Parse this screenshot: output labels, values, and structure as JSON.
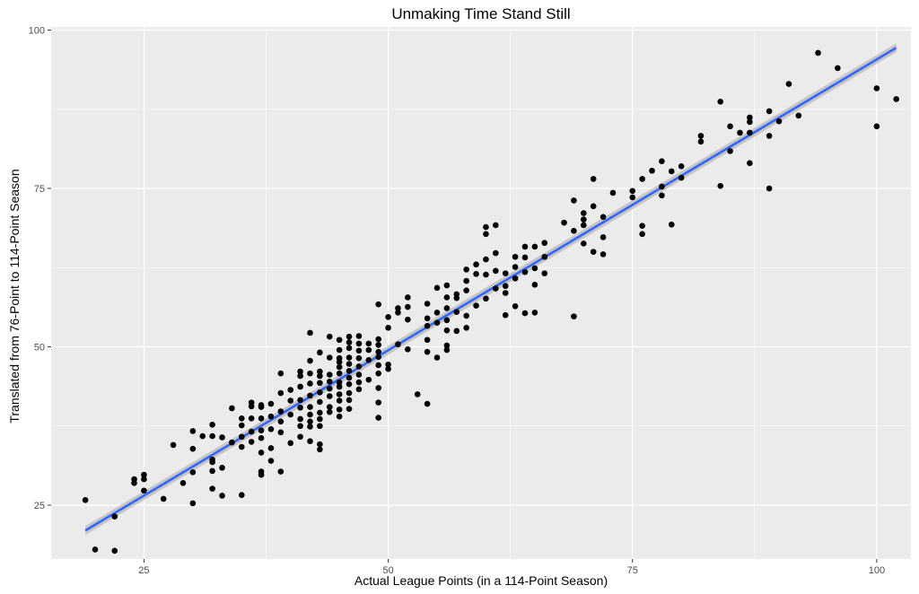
{
  "chart_data": {
    "type": "scatter",
    "title": "Unmaking Time Stand Still",
    "xlabel": "Actual League Points (in a 114-Point Season)",
    "ylabel": "Translated from 76-Point to 114-Point Season",
    "xlim": [
      15.5,
      103.5
    ],
    "ylim": [
      16.5,
      100.5
    ],
    "x_ticks": [
      25,
      50,
      75,
      100
    ],
    "y_ticks": [
      25,
      50,
      75,
      100
    ],
    "grid": true,
    "background": "#ebebeb",
    "grid_color": "#ffffff",
    "point_color": "#000000",
    "trend": {
      "method": "linear regression with confidence band",
      "x0": 19,
      "y0": 21.0,
      "x1": 102,
      "y1": 97.2,
      "band_half_width": 0.7,
      "line_color": "#3366ff",
      "band_color": "#bebebe"
    },
    "points": [
      [
        19,
        25.8
      ],
      [
        20,
        18
      ],
      [
        22,
        17.8
      ],
      [
        22,
        23.2
      ],
      [
        24,
        28.5
      ],
      [
        24,
        29.1
      ],
      [
        25,
        27.3
      ],
      [
        25,
        29.1
      ],
      [
        25,
        29.8
      ],
      [
        27,
        26
      ],
      [
        28,
        34.5
      ],
      [
        29,
        28.5
      ],
      [
        30,
        25.3
      ],
      [
        30,
        30.2
      ],
      [
        30,
        33.9
      ],
      [
        30,
        36.7
      ],
      [
        31,
        35.9
      ],
      [
        32,
        27.6
      ],
      [
        32,
        30.4
      ],
      [
        32,
        31.8
      ],
      [
        32,
        32.2
      ],
      [
        32,
        35.9
      ],
      [
        32,
        37.7
      ],
      [
        33,
        26.5
      ],
      [
        33,
        30.9
      ],
      [
        33,
        35.7
      ],
      [
        34,
        34.9
      ],
      [
        34,
        40.3
      ],
      [
        35,
        26.6
      ],
      [
        35,
        34.2
      ],
      [
        35,
        35.8
      ],
      [
        35,
        37.6
      ],
      [
        35,
        38.7
      ],
      [
        36,
        35
      ],
      [
        36,
        36.6
      ],
      [
        36,
        38.7
      ],
      [
        36,
        40.6
      ],
      [
        36,
        41.2
      ],
      [
        37,
        29.8
      ],
      [
        37,
        30.3
      ],
      [
        37,
        33.3
      ],
      [
        37,
        35.6
      ],
      [
        37,
        36.8
      ],
      [
        37,
        38.7
      ],
      [
        37,
        40.5
      ],
      [
        37,
        40.8
      ],
      [
        38,
        32
      ],
      [
        38,
        34
      ],
      [
        38,
        37
      ],
      [
        38,
        39
      ],
      [
        38,
        41
      ],
      [
        39,
        30.3
      ],
      [
        39,
        36.5
      ],
      [
        39,
        38.2
      ],
      [
        39,
        39.8
      ],
      [
        39,
        42.7
      ],
      [
        39,
        45.8
      ],
      [
        40,
        34.8
      ],
      [
        40,
        39.3
      ],
      [
        40,
        41.5
      ],
      [
        40,
        43.2
      ],
      [
        41,
        35.8
      ],
      [
        41,
        37.5
      ],
      [
        41,
        38.6
      ],
      [
        41,
        40.4
      ],
      [
        41,
        41.6
      ],
      [
        41,
        43.7
      ],
      [
        41,
        45.4
      ],
      [
        41,
        46.1
      ],
      [
        42,
        35.1
      ],
      [
        42,
        37.4
      ],
      [
        42,
        38.2
      ],
      [
        42,
        39.3
      ],
      [
        42,
        40.5
      ],
      [
        42,
        42.3
      ],
      [
        42,
        44.2
      ],
      [
        42,
        45.8
      ],
      [
        42,
        47.8
      ],
      [
        42,
        52.2
      ],
      [
        43,
        33.8
      ],
      [
        43,
        34.6
      ],
      [
        43,
        37.5
      ],
      [
        43,
        38.6
      ],
      [
        43,
        39.6
      ],
      [
        43,
        41.3
      ],
      [
        43,
        42.8
      ],
      [
        43,
        44.3
      ],
      [
        43,
        45.4
      ],
      [
        43,
        46.1
      ],
      [
        43,
        49.1
      ],
      [
        44,
        39.7
      ],
      [
        44,
        40.5
      ],
      [
        44,
        42.2
      ],
      [
        44,
        43.4
      ],
      [
        44,
        44.5
      ],
      [
        44,
        45.6
      ],
      [
        44,
        48.3
      ],
      [
        44,
        51.6
      ],
      [
        45,
        39
      ],
      [
        45,
        40.1
      ],
      [
        45,
        41.5
      ],
      [
        45,
        42.5
      ],
      [
        45,
        43.7
      ],
      [
        45,
        44.4
      ],
      [
        45,
        45.8
      ],
      [
        45,
        46.8
      ],
      [
        45,
        47.6
      ],
      [
        45,
        48.2
      ],
      [
        45,
        49.5
      ],
      [
        45,
        51.1
      ],
      [
        46,
        40.2
      ],
      [
        46,
        41.6
      ],
      [
        46,
        42.7
      ],
      [
        46,
        44.1
      ],
      [
        46,
        45.1
      ],
      [
        46,
        46.2
      ],
      [
        46,
        47.3
      ],
      [
        46,
        48.3
      ],
      [
        46,
        49.8
      ],
      [
        46,
        50.7
      ],
      [
        46,
        51.6
      ],
      [
        47,
        43.3
      ],
      [
        47,
        44.4
      ],
      [
        47,
        45.6
      ],
      [
        47,
        46.9
      ],
      [
        47,
        48.2
      ],
      [
        47,
        49.4
      ],
      [
        47,
        50.5
      ],
      [
        47,
        51.7
      ],
      [
        48,
        44.8
      ],
      [
        48,
        47.9
      ],
      [
        48,
        49.5
      ],
      [
        48,
        50.5
      ],
      [
        49,
        38.8
      ],
      [
        49,
        41.2
      ],
      [
        49,
        43.5
      ],
      [
        49,
        45.8
      ],
      [
        49,
        47.1
      ],
      [
        49,
        48.4
      ],
      [
        49,
        49.2
      ],
      [
        49,
        50.3
      ],
      [
        49,
        51.2
      ],
      [
        49,
        56.7
      ],
      [
        50,
        46.5
      ],
      [
        50,
        47.2
      ],
      [
        50,
        53
      ],
      [
        50,
        54.7
      ],
      [
        51,
        50.4
      ],
      [
        51,
        55.4
      ],
      [
        51,
        56.1
      ],
      [
        52,
        49.6
      ],
      [
        52,
        54.3
      ],
      [
        52,
        56.3
      ],
      [
        52,
        57.8
      ],
      [
        53,
        42.5
      ],
      [
        54,
        41
      ],
      [
        54,
        49.2
      ],
      [
        54,
        51.1
      ],
      [
        54,
        53.3
      ],
      [
        54,
        54.5
      ],
      [
        54,
        56.8
      ],
      [
        55,
        48.3
      ],
      [
        55,
        53.8
      ],
      [
        55,
        55.4
      ],
      [
        55,
        59.3
      ],
      [
        56,
        49.5
      ],
      [
        56,
        50.2
      ],
      [
        56,
        52.6
      ],
      [
        56,
        54.2
      ],
      [
        56,
        56.1
      ],
      [
        56,
        57.8
      ],
      [
        56,
        59.7
      ],
      [
        57,
        52.5
      ],
      [
        57,
        55.5
      ],
      [
        57,
        57.7
      ],
      [
        57,
        58.3
      ],
      [
        58,
        53
      ],
      [
        58,
        54.9
      ],
      [
        58,
        58.9
      ],
      [
        58,
        60.4
      ],
      [
        58,
        62.2
      ],
      [
        59,
        56.5
      ],
      [
        59,
        61.5
      ],
      [
        59,
        63
      ],
      [
        60,
        57.6
      ],
      [
        60,
        61.4
      ],
      [
        60,
        63.8
      ],
      [
        60,
        67.8
      ],
      [
        60,
        68.9
      ],
      [
        61,
        59.2
      ],
      [
        61,
        62
      ],
      [
        61,
        64.8
      ],
      [
        61,
        69.2
      ],
      [
        62,
        55
      ],
      [
        62,
        58.5
      ],
      [
        62,
        59.6
      ],
      [
        62,
        61.6
      ],
      [
        63,
        56.4
      ],
      [
        63,
        60.8
      ],
      [
        63,
        62.6
      ],
      [
        63,
        64.2
      ],
      [
        64,
        55.3
      ],
      [
        64,
        61.8
      ],
      [
        64,
        64.1
      ],
      [
        64,
        65.8
      ],
      [
        65,
        55.4
      ],
      [
        65,
        59.8
      ],
      [
        65,
        62.4
      ],
      [
        65,
        65.8
      ],
      [
        66,
        61.6
      ],
      [
        66,
        64.2
      ],
      [
        66,
        66.4
      ],
      [
        68,
        69.6
      ],
      [
        69,
        54.8
      ],
      [
        69,
        68.3
      ],
      [
        69,
        73.1
      ],
      [
        70,
        66.3
      ],
      [
        70,
        69.2
      ],
      [
        70,
        70.1
      ],
      [
        70,
        71.1
      ],
      [
        71,
        65
      ],
      [
        71,
        72.2
      ],
      [
        71,
        76.5
      ],
      [
        72,
        64.6
      ],
      [
        72,
        67.3
      ],
      [
        72,
        70.5
      ],
      [
        73,
        74.3
      ],
      [
        75,
        73.6
      ],
      [
        75,
        74.6
      ],
      [
        76,
        67.8
      ],
      [
        76,
        69.1
      ],
      [
        76,
        76.5
      ],
      [
        77,
        77.8
      ],
      [
        78,
        73.9
      ],
      [
        78,
        75.3
      ],
      [
        78,
        79.3
      ],
      [
        79,
        69.3
      ],
      [
        79,
        77.7
      ],
      [
        80,
        76.7
      ],
      [
        80,
        78.5
      ],
      [
        82,
        82.4
      ],
      [
        82,
        83.3
      ],
      [
        84,
        75.4
      ],
      [
        84,
        88.7
      ],
      [
        85,
        80.9
      ],
      [
        85,
        84.8
      ],
      [
        86,
        83.8
      ],
      [
        87,
        79
      ],
      [
        87,
        83.8
      ],
      [
        87,
        85.5
      ],
      [
        87,
        86.2
      ],
      [
        89,
        75
      ],
      [
        89,
        83.3
      ],
      [
        89,
        87.2
      ],
      [
        90,
        85.6
      ],
      [
        91,
        91.5
      ],
      [
        92,
        86.5
      ],
      [
        94,
        96.4
      ],
      [
        96,
        94
      ],
      [
        100,
        84.8
      ],
      [
        100,
        90.8
      ],
      [
        102,
        89.1
      ]
    ]
  }
}
